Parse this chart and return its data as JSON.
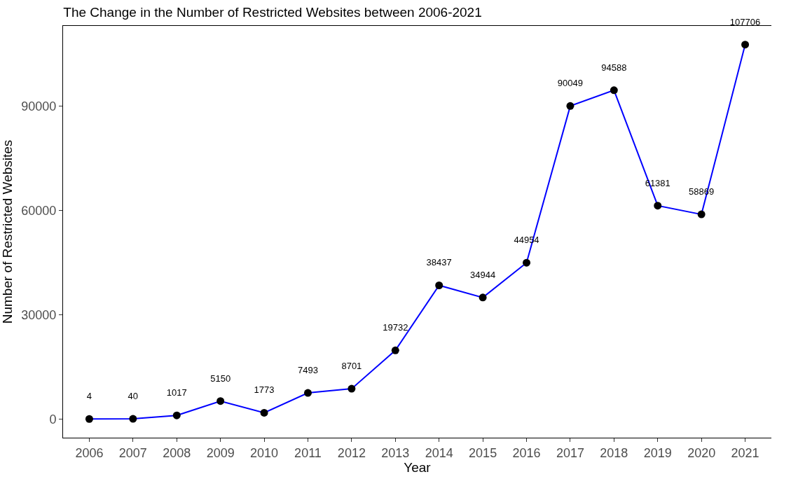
{
  "chart_data": {
    "type": "line",
    "title": "The Change in the Number of Restricted Websites between 2006-2021",
    "xlabel": "Year",
    "ylabel": "Number of Restricted Websites",
    "categories": [
      "2006",
      "2007",
      "2008",
      "2009",
      "2010",
      "2011",
      "2012",
      "2013",
      "2014",
      "2015",
      "2016",
      "2017",
      "2018",
      "2019",
      "2020",
      "2021"
    ],
    "series": [
      {
        "color": "#0000ff",
        "values": [
          4,
          40,
          1017,
          5150,
          1773,
          7493,
          8701,
          19732,
          38437,
          34944,
          44954,
          90049,
          94588,
          61381,
          58869,
          107706
        ]
      }
    ],
    "ylim": [
      -5385,
      113091
    ],
    "yticks": [
      0,
      30000,
      60000,
      90000
    ],
    "grid": false,
    "marker": "circle",
    "line_style": "solid",
    "data_labels": true
  }
}
